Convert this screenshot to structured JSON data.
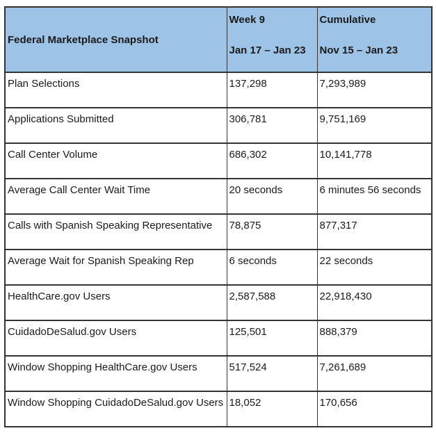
{
  "table": {
    "title": "Federal Marketplace Snapshot",
    "header": {
      "metric_label": "Federal Marketplace Snapshot",
      "week_label": "Week 9",
      "week_range": "Jan 17 – Jan 23",
      "cumulative_label": "Cumulative",
      "cumulative_range": "Nov 15 – Jan 23"
    },
    "rows": [
      {
        "metric": "Plan Selections",
        "week": "137,298",
        "cumulative": "7,293,989"
      },
      {
        "metric": "Applications Submitted",
        "week": "306,781",
        "cumulative": "9,751,169"
      },
      {
        "metric": "Call Center Volume",
        "week": "686,302",
        "cumulative": "10,141,778"
      },
      {
        "metric": "Average Call Center Wait Time",
        "week": "20 seconds",
        "cumulative": "6 minutes 56 seconds"
      },
      {
        "metric": "Calls with Spanish Speaking Representative",
        "week": "78,875",
        "cumulative": "877,317"
      },
      {
        "metric": "Average Wait for Spanish Speaking Rep",
        "week": "6 seconds",
        "cumulative": "22 seconds"
      },
      {
        "metric": "HealthCare.gov Users",
        "week": "2,587,588",
        "cumulative": "22,918,430"
      },
      {
        "metric": "CuidadoDeSalud.gov Users",
        "week": "125,501",
        "cumulative": "888,379"
      },
      {
        "metric": "Window Shopping HealthCare.gov Users",
        "week": "517,524",
        "cumulative": "7,261,689"
      },
      {
        "metric": "Window Shopping CuidadoDeSalud.gov Users",
        "week": "18,052",
        "cumulative": "170,656"
      }
    ],
    "colors": {
      "header_background": "#9DC3E6",
      "border": "#333333",
      "text": "#1A1A1A",
      "page_background": "#FFFFFF"
    }
  }
}
